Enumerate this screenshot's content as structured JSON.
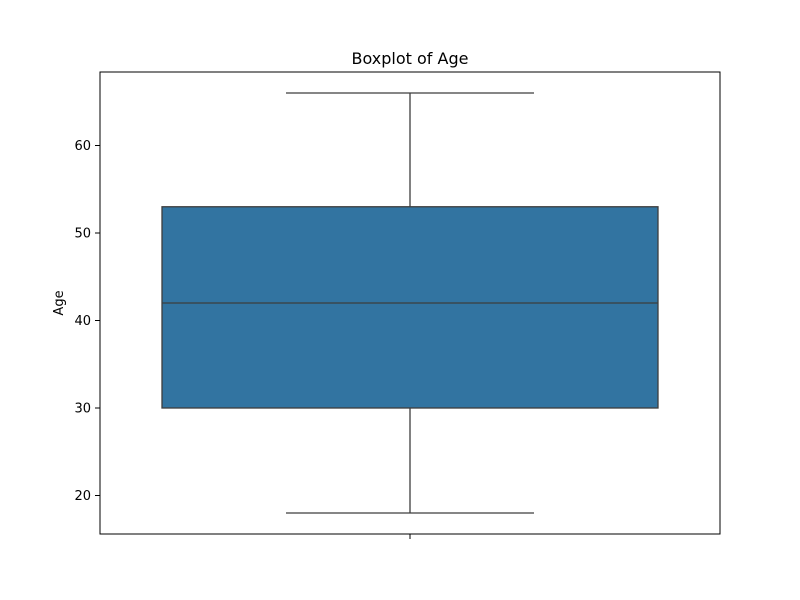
{
  "chart_data": {
    "type": "box",
    "title": "Boxplot of Age",
    "xlabel": "",
    "ylabel": "Age",
    "ylim": [
      15.6,
      68.4
    ],
    "yticks": [
      20,
      30,
      40,
      50,
      60
    ],
    "grid": false,
    "legend": "none",
    "boxes": [
      {
        "whisker_low": 18,
        "q1": 30,
        "median": 42,
        "q3": 53,
        "whisker_high": 66
      }
    ],
    "colors": {
      "box_fill": "#3274a1",
      "lines": "#3d3d3d",
      "frame": "#000000"
    }
  }
}
